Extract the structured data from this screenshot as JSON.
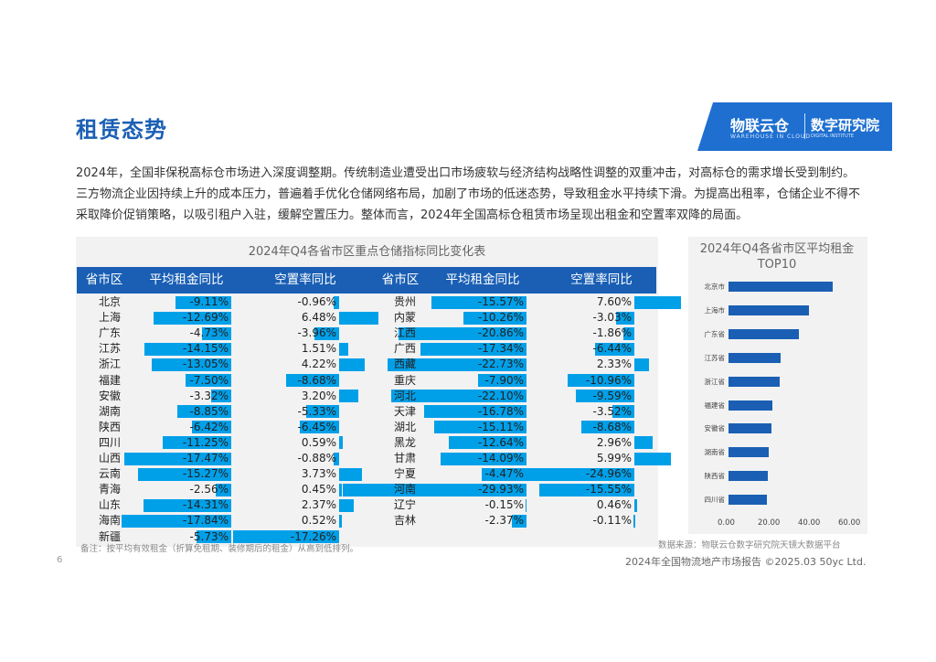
{
  "page": {
    "title": "租赁态势",
    "logo_left": "物联云仓",
    "logo_left_sub": "WAREHOUSE IN CLOUD",
    "logo_right": "数字研究院",
    "logo_right_sub": "DIGITAL INSTITUTE",
    "paragraph": "2024年，全国非保税高标仓市场进入深度调整期。传统制造业遭受出口市场疲软与经济结构战略性调整的双重冲击，对高标仓的需求增长受到制约。三方物流企业因持续上升的成本压力，普遍着手优化仓储网络布局，加剧了市场的低迷态势，导致租金水平持续下滑。为提高出租率，仓储企业不得不采取降价促销策略，以吸引租户入驻，缓解空置压力。整体而言，2024年全国高标仓租赁市场呈现出租金和空置率双降的局面。",
    "note": "备注：按平均有效租金（折算免租期、装修期后的租金）从高到低排列。",
    "source": "数据来源：物联云仓数字研究院天镜大数据平台",
    "footer": "2024年全国物流地产市场报告   ©2025.03   50yc Ltd.",
    "page_number": "6",
    "bar_color": "#00a0e9",
    "header_color": "#1a5fb4"
  },
  "chart_data": [
    {
      "type": "table",
      "title": "2024年Q4各省市区重点仓储指标同比变化表",
      "columns": [
        "省市区",
        "平均租金同比",
        "空置率同比",
        "省市区",
        "平均租金同比",
        "空置率同比"
      ],
      "rows_left": [
        {
          "province": "北京",
          "rent": "-9.11%",
          "vac": "-0.96%",
          "rent_v": -9.11,
          "vac_v": -0.96
        },
        {
          "province": "上海",
          "rent": "-12.69%",
          "vac": "6.48%",
          "rent_v": -12.69,
          "vac_v": 6.48
        },
        {
          "province": "广东",
          "rent": "-4.73%",
          "vac": "-3.96%",
          "rent_v": -4.73,
          "vac_v": -3.96
        },
        {
          "province": "江苏",
          "rent": "-14.15%",
          "vac": "1.51%",
          "rent_v": -14.15,
          "vac_v": 1.51
        },
        {
          "province": "浙江",
          "rent": "-13.05%",
          "vac": "4.22%",
          "rent_v": -13.05,
          "vac_v": 4.22
        },
        {
          "province": "福建",
          "rent": "-7.50%",
          "vac": "-8.68%",
          "rent_v": -7.5,
          "vac_v": -8.68
        },
        {
          "province": "安徽",
          "rent": "-3.32%",
          "vac": "3.20%",
          "rent_v": -3.32,
          "vac_v": 3.2
        },
        {
          "province": "湖南",
          "rent": "-8.85%",
          "vac": "-5.33%",
          "rent_v": -8.85,
          "vac_v": -5.33
        },
        {
          "province": "陕西",
          "rent": "-6.42%",
          "vac": "-6.45%",
          "rent_v": -6.42,
          "vac_v": -6.45
        },
        {
          "province": "四川",
          "rent": "-11.25%",
          "vac": "0.59%",
          "rent_v": -11.25,
          "vac_v": 0.59
        },
        {
          "province": "山西",
          "rent": "-17.47%",
          "vac": "-0.88%",
          "rent_v": -17.47,
          "vac_v": -0.88
        },
        {
          "province": "云南",
          "rent": "-15.27%",
          "vac": "3.73%",
          "rent_v": -15.27,
          "vac_v": 3.73
        },
        {
          "province": "青海",
          "rent": "-2.56%",
          "vac": "0.45%",
          "rent_v": -2.56,
          "vac_v": 0.45
        },
        {
          "province": "山东",
          "rent": "-14.31%",
          "vac": "2.37%",
          "rent_v": -14.31,
          "vac_v": 2.37
        },
        {
          "province": "海南",
          "rent": "-17.84%",
          "vac": "0.52%",
          "rent_v": -17.84,
          "vac_v": 0.52
        },
        {
          "province": "新疆",
          "rent": "-5.73%",
          "vac": "-17.26%",
          "rent_v": -5.73,
          "vac_v": -17.26
        }
      ],
      "rows_right": [
        {
          "province": "贵州",
          "rent": "-15.57%",
          "vac": "7.60%",
          "rent_v": -15.57,
          "vac_v": 7.6
        },
        {
          "province": "内蒙",
          "rent": "-10.26%",
          "vac": "-3.03%",
          "rent_v": -10.26,
          "vac_v": -3.03
        },
        {
          "province": "江西",
          "rent": "-20.86%",
          "vac": "-1.86%",
          "rent_v": -20.86,
          "vac_v": -1.86
        },
        {
          "province": "广西",
          "rent": "-17.34%",
          "vac": "-6.44%",
          "rent_v": -17.34,
          "vac_v": -6.44
        },
        {
          "province": "西藏",
          "rent": "-22.73%",
          "vac": "2.33%",
          "rent_v": -22.73,
          "vac_v": 2.33
        },
        {
          "province": "重庆",
          "rent": "-7.90%",
          "vac": "-10.96%",
          "rent_v": -7.9,
          "vac_v": -10.96
        },
        {
          "province": "河北",
          "rent": "-22.10%",
          "vac": "-9.59%",
          "rent_v": -22.1,
          "vac_v": -9.59
        },
        {
          "province": "天津",
          "rent": "-16.78%",
          "vac": "-3.52%",
          "rent_v": -16.78,
          "vac_v": -3.52
        },
        {
          "province": "湖北",
          "rent": "-15.11%",
          "vac": "-8.68%",
          "rent_v": -15.11,
          "vac_v": -8.68
        },
        {
          "province": "黑龙",
          "rent": "-12.64%",
          "vac": "2.96%",
          "rent_v": -12.64,
          "vac_v": 2.96
        },
        {
          "province": "甘肃",
          "rent": "-14.09%",
          "vac": "5.99%",
          "rent_v": -14.09,
          "vac_v": 5.99
        },
        {
          "province": "宁夏",
          "rent": "-4.47%",
          "vac": "-24.96%",
          "rent_v": -4.47,
          "vac_v": -24.96
        },
        {
          "province": "河南",
          "rent": "-29.93%",
          "vac": "-15.55%",
          "rent_v": -29.93,
          "vac_v": -15.55
        },
        {
          "province": "辽宁",
          "rent": "-0.15%",
          "vac": "0.46%",
          "rent_v": -0.15,
          "vac_v": 0.46
        },
        {
          "province": "吉林",
          "rent": "-2.37%",
          "vac": "-0.11%",
          "rent_v": -2.37,
          "vac_v": -0.11
        }
      ]
    },
    {
      "type": "bar",
      "orientation": "horizontal",
      "title": "2024年Q4各省市区平均租金TOP10",
      "categories": [
        "北京市",
        "上海市",
        "广东省",
        "江苏省",
        "浙江省",
        "福建省",
        "安徽省",
        "湖南省",
        "陕西省",
        "四川省"
      ],
      "values": [
        52,
        40,
        35,
        26,
        25.5,
        22,
        21.5,
        20,
        19.5,
        19
      ],
      "xlim": [
        0,
        60
      ],
      "xticks": [
        "0.00",
        "20.00",
        "40.00",
        "60.00"
      ],
      "color": "#1a5fb4"
    }
  ]
}
